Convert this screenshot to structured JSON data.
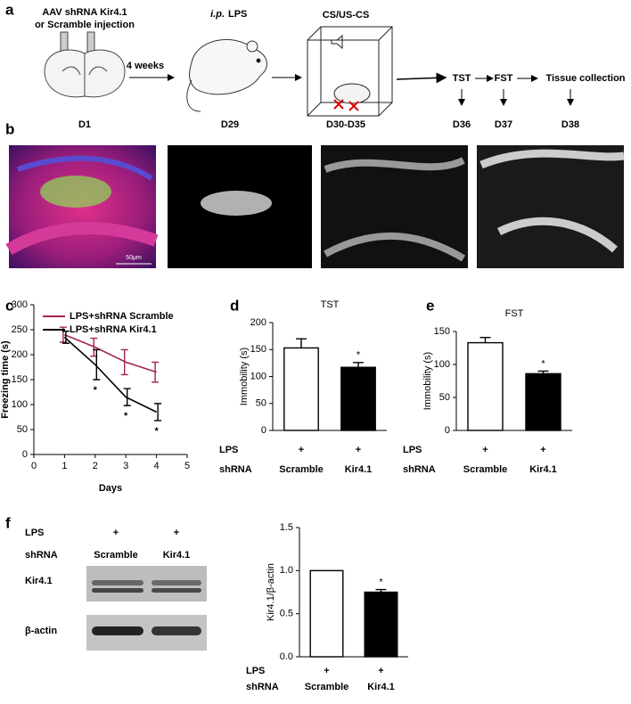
{
  "panel_labels": [
    "a",
    "b",
    "c",
    "d",
    "e",
    "f"
  ],
  "schematic": {
    "injection": [
      "AAV shRNA Kir4.1",
      "or Scramble injection"
    ],
    "interval": "4 weeks",
    "lps_route": "i.p.",
    "lps": "LPS",
    "conditioning": "CS/US-CS",
    "steps": [
      "TST",
      "FST",
      "Tissue collection"
    ],
    "days": [
      "D1",
      "D29",
      "D30-D35",
      "D36",
      "D37",
      "D38"
    ]
  },
  "images": {
    "scale_bar": "50μm"
  },
  "blot": {
    "row_labels": [
      "LPS",
      "shRNA"
    ],
    "lps": [
      "+",
      "+"
    ],
    "groups": [
      "Scramble",
      "Kir4.1"
    ],
    "bands": [
      "Kir4.1",
      "β-actin"
    ]
  },
  "chart_data": [
    {
      "type": "line",
      "x": [
        1,
        2,
        3,
        4
      ],
      "xlim": [
        0,
        5
      ],
      "xticks": [
        0,
        1,
        2,
        3,
        4,
        5
      ],
      "ylim": [
        0,
        300
      ],
      "yticks": [
        0,
        50,
        100,
        150,
        200,
        250,
        300
      ],
      "x_label": "Days",
      "y_label": "Freezing time (s)",
      "legend": "top-left",
      "series": [
        {
          "name": "LPS+shRNA Scramble",
          "color": "#a3234f",
          "values": [
            240,
            215,
            185,
            165
          ],
          "errors": [
            15,
            18,
            25,
            20
          ]
        },
        {
          "name": "LPS+shRNA Kir4.1",
          "color": "#000000",
          "values": [
            235,
            180,
            115,
            85
          ],
          "errors": [
            12,
            30,
            17,
            17
          ],
          "significance": [
            null,
            "*",
            "*",
            "*"
          ]
        }
      ]
    },
    {
      "type": "bar",
      "title": "TST",
      "categories": [
        "Scramble",
        "Kir4.1"
      ],
      "values": [
        153,
        117
      ],
      "errors": [
        17,
        9
      ],
      "colors": [
        "#ffffff",
        "#000000"
      ],
      "significance": [
        null,
        "*"
      ],
      "ylim": [
        0,
        200
      ],
      "yticks": [
        0,
        50,
        100,
        150,
        200
      ],
      "y_label": "Immobility (s)",
      "row_labels": [
        "LPS",
        "shRNA"
      ],
      "lps": [
        "+",
        "+"
      ]
    },
    {
      "type": "bar",
      "title": "FST",
      "categories": [
        "Scramble",
        "Kir4.1"
      ],
      "values": [
        133,
        86
      ],
      "errors": [
        8,
        4
      ],
      "colors": [
        "#ffffff",
        "#000000"
      ],
      "significance": [
        null,
        "*"
      ],
      "ylim": [
        0,
        150
      ],
      "yticks": [
        0,
        50,
        100,
        150
      ],
      "y_label": "Immobility (s)",
      "row_labels": [
        "LPS",
        "shRNA"
      ],
      "lps": [
        "+",
        "+"
      ]
    },
    {
      "type": "bar",
      "categories": [
        "Scramble",
        "Kir4.1"
      ],
      "values": [
        1.0,
        0.75
      ],
      "errors": [
        0,
        0.03
      ],
      "colors": [
        "#ffffff",
        "#000000"
      ],
      "significance": [
        null,
        "*"
      ],
      "ylim": [
        0,
        1.5
      ],
      "yticks": [
        {
          "value": 0,
          "label": "0.0"
        },
        {
          "value": 0.5,
          "label": "0.5"
        },
        {
          "value": 1,
          "label": "1.0"
        },
        {
          "value": 1.5,
          "label": "1.5"
        }
      ],
      "y_label": "Kir4.1/β-actin",
      "row_labels": [
        "LPS",
        "shRNA"
      ],
      "lps": [
        "+",
        "+"
      ]
    }
  ]
}
